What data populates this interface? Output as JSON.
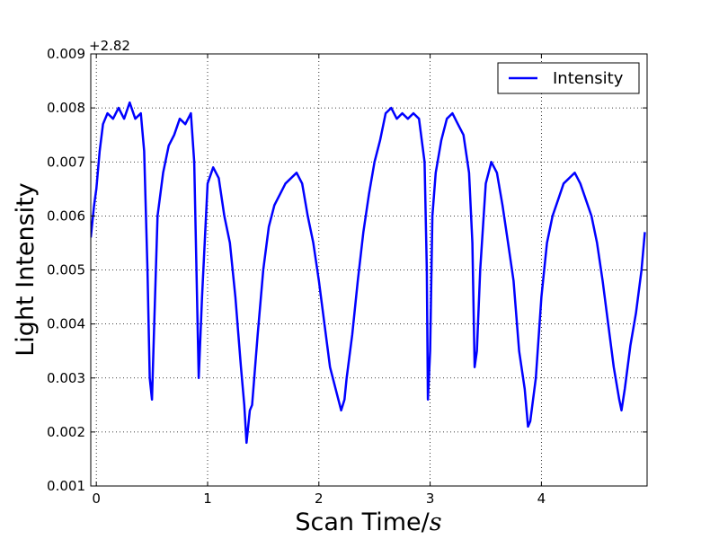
{
  "chart_data": {
    "type": "line",
    "xlabel": "Scan Time/",
    "xlabel_unit": "s",
    "ylabel": "Light Intensity",
    "offset_text": "+2.82",
    "y_offset": 2.82,
    "xlim": [
      -0.05,
      4.95
    ],
    "ylim": [
      0.001,
      0.009
    ],
    "x_ticks": [
      0,
      1,
      2,
      3,
      4
    ],
    "x_tick_labels": [
      "0",
      "1",
      "2",
      "3",
      "4"
    ],
    "y_ticks": [
      0.001,
      0.002,
      0.003,
      0.004,
      0.005,
      0.006,
      0.007,
      0.008,
      0.009
    ],
    "y_tick_labels": [
      "0.001",
      "0.002",
      "0.003",
      "0.004",
      "0.005",
      "0.006",
      "0.007",
      "0.008",
      "0.009"
    ],
    "grid": true,
    "legend": {
      "position": "top-right",
      "entries": [
        "Intensity"
      ]
    },
    "series": [
      {
        "name": "Intensity",
        "color": "#0000ff",
        "x": [
          -0.05,
          -0.02,
          0.0,
          0.03,
          0.06,
          0.1,
          0.15,
          0.2,
          0.25,
          0.3,
          0.35,
          0.4,
          0.43,
          0.46,
          0.48,
          0.5,
          0.52,
          0.55,
          0.6,
          0.65,
          0.7,
          0.75,
          0.8,
          0.85,
          0.88,
          0.9,
          0.92,
          0.95,
          1.0,
          1.05,
          1.1,
          1.15,
          1.2,
          1.25,
          1.3,
          1.33,
          1.35,
          1.38,
          1.4,
          1.45,
          1.5,
          1.55,
          1.6,
          1.65,
          1.7,
          1.75,
          1.8,
          1.85,
          1.9,
          1.95,
          2.0,
          2.05,
          2.1,
          2.15,
          2.2,
          2.23,
          2.25,
          2.3,
          2.35,
          2.4,
          2.45,
          2.5,
          2.55,
          2.6,
          2.65,
          2.7,
          2.75,
          2.8,
          2.85,
          2.9,
          2.95,
          2.97,
          2.98,
          3.0,
          3.02,
          3.05,
          3.1,
          3.15,
          3.2,
          3.25,
          3.3,
          3.35,
          3.38,
          3.4,
          3.42,
          3.45,
          3.5,
          3.55,
          3.6,
          3.65,
          3.7,
          3.75,
          3.8,
          3.85,
          3.88,
          3.9,
          3.95,
          4.0,
          4.05,
          4.1,
          4.15,
          4.2,
          4.25,
          4.3,
          4.35,
          4.4,
          4.45,
          4.5,
          4.55,
          4.6,
          4.65,
          4.7,
          4.72,
          4.75,
          4.8,
          4.85,
          4.9,
          4.93
        ],
        "values": [
          0.0056,
          0.0062,
          0.0065,
          0.0072,
          0.0077,
          0.0079,
          0.0078,
          0.008,
          0.0078,
          0.0081,
          0.0078,
          0.0079,
          0.0072,
          0.005,
          0.003,
          0.0026,
          0.004,
          0.006,
          0.0068,
          0.0073,
          0.0075,
          0.0078,
          0.0077,
          0.0079,
          0.007,
          0.005,
          0.003,
          0.0045,
          0.0066,
          0.0069,
          0.0067,
          0.006,
          0.0055,
          0.0045,
          0.0032,
          0.0025,
          0.0018,
          0.0024,
          0.0025,
          0.0038,
          0.005,
          0.0058,
          0.0062,
          0.0064,
          0.0066,
          0.0067,
          0.0068,
          0.0066,
          0.006,
          0.0055,
          0.0048,
          0.004,
          0.0032,
          0.0028,
          0.0024,
          0.0026,
          0.003,
          0.0038,
          0.0048,
          0.0057,
          0.0064,
          0.007,
          0.0074,
          0.0079,
          0.008,
          0.0078,
          0.0079,
          0.0078,
          0.0079,
          0.0078,
          0.007,
          0.005,
          0.0026,
          0.0035,
          0.006,
          0.0068,
          0.0074,
          0.0078,
          0.0079,
          0.0077,
          0.0075,
          0.0068,
          0.0055,
          0.0032,
          0.0035,
          0.005,
          0.0066,
          0.007,
          0.0068,
          0.0062,
          0.0055,
          0.0048,
          0.0035,
          0.0028,
          0.0021,
          0.0022,
          0.003,
          0.0045,
          0.0055,
          0.006,
          0.0063,
          0.0066,
          0.0067,
          0.0068,
          0.0066,
          0.0063,
          0.006,
          0.0055,
          0.0048,
          0.004,
          0.0032,
          0.0026,
          0.0024,
          0.0028,
          0.0036,
          0.0042,
          0.005,
          0.0057
        ]
      }
    ]
  }
}
